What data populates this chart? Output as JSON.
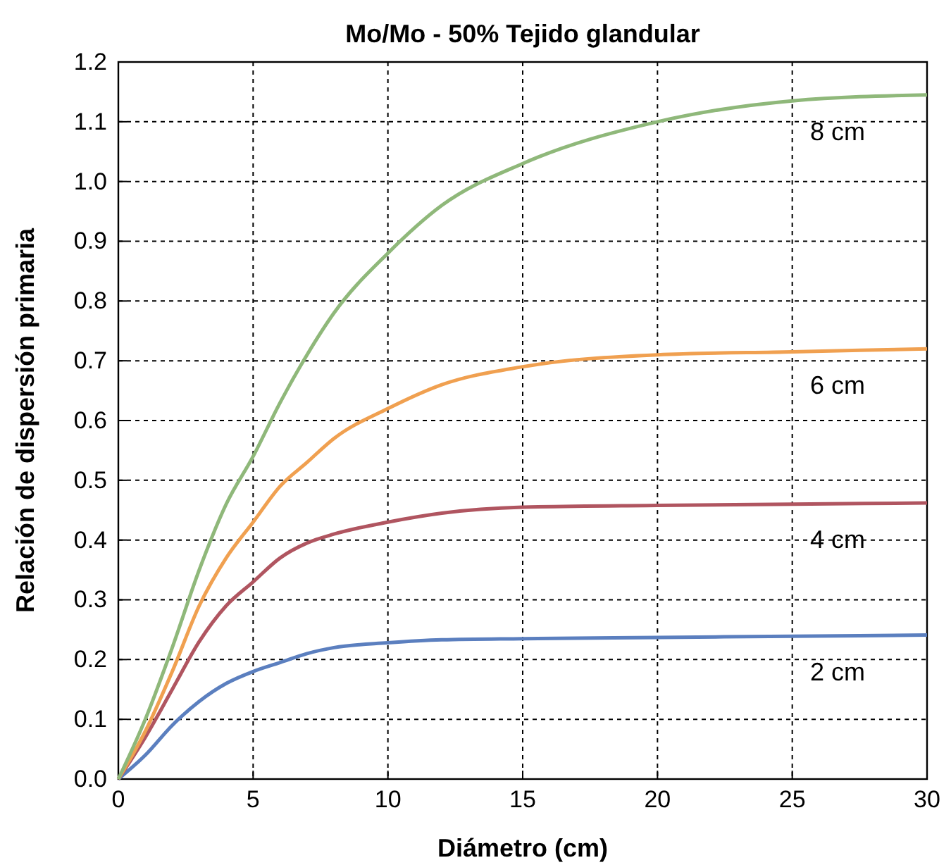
{
  "chart_data": {
    "type": "line",
    "title": "Mo/Mo - 50% Tejido glandular",
    "xlabel": "Diámetro (cm)",
    "ylabel": "Relación de dispersión primaria",
    "x": [
      0,
      1,
      2,
      3,
      4,
      5,
      6,
      7,
      8,
      10,
      12,
      15,
      20,
      25,
      30
    ],
    "xlim": [
      0,
      30
    ],
    "xticks": [
      0,
      5,
      10,
      15,
      20,
      25,
      30
    ],
    "ylim": [
      0,
      1.2
    ],
    "yticks": [
      {
        "value": 0,
        "label": "0.0"
      },
      0.1,
      0.2,
      0.3,
      0.4,
      0.5,
      0.6,
      0.7,
      0.8,
      0.9,
      {
        "value": 1,
        "label": "1.0"
      },
      1.1,
      1.2
    ],
    "grid": true,
    "legend": false,
    "marker": "none",
    "line_style": "solid",
    "series": [
      {
        "name": "2 cm",
        "color": "#5b7fbf",
        "values": [
          0,
          0.04,
          0.09,
          0.13,
          0.16,
          0.18,
          0.195,
          0.21,
          0.22,
          0.228,
          0.233,
          0.235,
          0.237,
          0.239,
          0.241
        ]
      },
      {
        "name": "4 cm",
        "color": "#b05560",
        "values": [
          0,
          0.07,
          0.15,
          0.23,
          0.29,
          0.33,
          0.37,
          0.395,
          0.41,
          0.43,
          0.445,
          0.455,
          0.458,
          0.46,
          0.462
        ]
      },
      {
        "name": "6 cm",
        "color": "#f0a050",
        "values": [
          0,
          0.08,
          0.18,
          0.29,
          0.37,
          0.43,
          0.49,
          0.53,
          0.57,
          0.62,
          0.66,
          0.69,
          0.71,
          0.715,
          0.72
        ]
      },
      {
        "name": "8 cm",
        "color": "#8fb87a",
        "values": [
          0,
          0.1,
          0.22,
          0.35,
          0.46,
          0.54,
          0.63,
          0.71,
          0.78,
          0.88,
          0.96,
          1.03,
          1.1,
          1.135,
          1.145
        ]
      }
    ]
  }
}
